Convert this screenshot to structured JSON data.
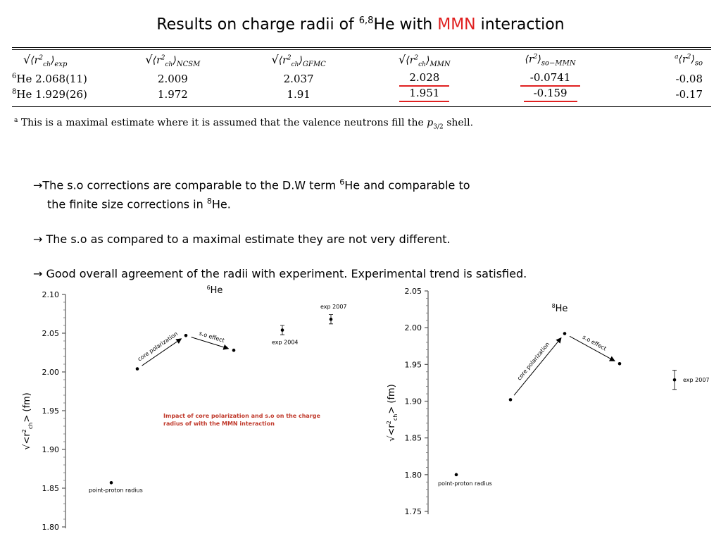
{
  "title": {
    "prefix": "Results on charge radii of ",
    "sup": "6,8",
    "he_with": "He with ",
    "mmn": "MMN",
    "suffix": " interaction"
  },
  "table": {
    "headers": [
      "exp",
      "NCSM",
      "GFMC",
      "MMN",
      "so−MMN",
      "so"
    ],
    "rows": [
      {
        "nucleus_mass": "6",
        "nucleus": "He",
        "exp": "2.068(11)",
        "ncsm": "2.009",
        "gfmc": "2.037",
        "mmn": "2.028",
        "so_mmn": "-0.0741",
        "so": "-0.08"
      },
      {
        "nucleus_mass": "8",
        "nucleus": "He",
        "exp": "1.929(26)",
        "ncsm": "1.972",
        "gfmc": "1.91",
        "mmn": "1.951",
        "so_mmn": "-0.159",
        "so": "-0.17"
      }
    ],
    "footnote_mark": "a",
    "footnote_text": "This is a maximal estimate where it is assumed that the valence neutrons fill the ",
    "footnote_p": "p",
    "footnote_sub": "3/2",
    "footnote_end": " shell."
  },
  "bullets": {
    "b1_a": "The s.o corrections are comparable to the D.W term  ",
    "b1_sup1": "6",
    "b1_b": "He and comparable to",
    "b1_c": "the finite size corrections in ",
    "b1_sup2": "8",
    "b1_d": "He.",
    "b2": " The s.o as compared to a maximal estimate they are not very different.",
    "b3": " Good overall agreement of the radii with experiment. Experimental trend is satisfied."
  },
  "chart_data": [
    {
      "type": "scatter",
      "title": "6He",
      "ylabel": "√<r²ch> (fm)",
      "ylim": [
        1.8,
        2.1
      ],
      "yticks": [
        "2.10",
        "2.05",
        "2.00",
        "1.95",
        "1.90",
        "1.85",
        "1.80"
      ],
      "points": [
        {
          "label": "point-proton radius",
          "x": 1,
          "y": 1.857
        },
        {
          "label": "",
          "x": 2,
          "y": 2.004
        },
        {
          "label": "",
          "x": 3,
          "y": 2.047
        },
        {
          "label": "",
          "x": 4,
          "y": 2.028
        },
        {
          "label": "exp 2004",
          "x": 5,
          "y": 2.054,
          "err": 0.006
        },
        {
          "label": "exp 2007",
          "x": 6,
          "y": 2.068,
          "err": 0.006
        }
      ],
      "arrows": [
        "core polarization",
        "s.o effect"
      ],
      "note": "Impact of core polarization and s.o on the charge radius of with the MMN interaction"
    },
    {
      "type": "scatter",
      "title": "8He",
      "ylabel": "√<r²ch> (fm)",
      "ylim": [
        1.75,
        2.05
      ],
      "yticks": [
        "2.05",
        "2.00",
        "1.95",
        "1.90",
        "1.85",
        "1.80",
        "1.75"
      ],
      "points": [
        {
          "label": "point-proton radius",
          "x": 1,
          "y": 1.8
        },
        {
          "label": "",
          "x": 2,
          "y": 1.902
        },
        {
          "label": "",
          "x": 3,
          "y": 1.992
        },
        {
          "label": "",
          "x": 4,
          "y": 1.951
        },
        {
          "label": "exp 2007",
          "x": 5,
          "y": 1.929,
          "err": 0.013
        }
      ],
      "arrows": [
        "core polarization",
        "s.o effect"
      ]
    }
  ],
  "colors": {
    "accent_red": "#e02020",
    "note_red": "#c0392b"
  }
}
